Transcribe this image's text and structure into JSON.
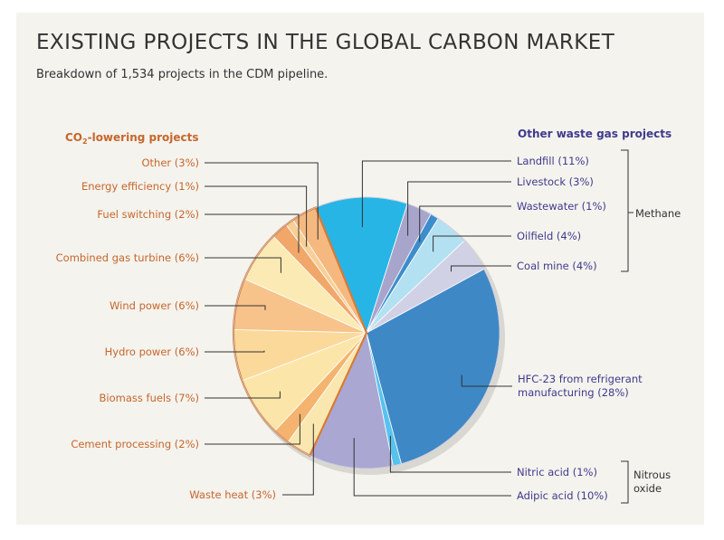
{
  "chart_data": {
    "type": "pie",
    "title": "EXISTING PROJECTS IN THE GLOBAL CARBON MARKET",
    "subtitle": "Breakdown of 1,534 projects in the CDM pipeline.",
    "groups": {
      "left_header_prefix": "CO",
      "left_header_sub": "2",
      "left_header_suffix": "-lowering projects",
      "right_header": "Other waste gas projects",
      "methane": "Methane",
      "nitrous_line1": "Nitrous",
      "nitrous_line2": "oxide"
    },
    "slices": [
      {
        "label": "Landfill (11%)",
        "value": 11,
        "group": "waste",
        "color": "#27b5e6"
      },
      {
        "label": "Livestock (3%)",
        "value": 3,
        "group": "waste",
        "color": "#a7a5cc"
      },
      {
        "label": "Wastewater (1%)",
        "value": 1,
        "group": "waste",
        "color": "#3d8dcc"
      },
      {
        "label": "Oilfield (4%)",
        "value": 4,
        "group": "waste",
        "color": "#b4e1f1"
      },
      {
        "label": "Coal mine (4%)",
        "value": 4,
        "group": "waste",
        "color": "#d1d1e6"
      },
      {
        "label": "HFC-23 from refrigerant manufacturing (28%)",
        "label_lines": [
          "HFC-23 from refrigerant",
          "manufacturing (28%)"
        ],
        "value": 28,
        "group": "waste",
        "color": "#3e88c6"
      },
      {
        "label": "Nitric acid (1%)",
        "value": 1,
        "group": "waste",
        "color": "#57c2ee"
      },
      {
        "label": "Adipic acid (10%)",
        "value": 10,
        "group": "waste",
        "color": "#aaa8d2"
      },
      {
        "label": "Waste heat (3%)",
        "value": 3,
        "group": "co2",
        "color": "#fae7b0"
      },
      {
        "label": "Cement processing (2%)",
        "value": 2,
        "group": "co2",
        "color": "#f4b36e"
      },
      {
        "label": "Biomass fuels (7%)",
        "value": 7,
        "group": "co2",
        "color": "#fbe5a8"
      },
      {
        "label": "Hydro power (6%)",
        "value": 6,
        "group": "co2",
        "color": "#fad99b"
      },
      {
        "label": "Wind power (6%)",
        "value": 6,
        "group": "co2",
        "color": "#f7c38a"
      },
      {
        "label": "Combined gas turbine (6%)",
        "value": 6,
        "group": "co2",
        "color": "#fbeab4"
      },
      {
        "label": "Fuel switching (2%)",
        "value": 2,
        "group": "co2",
        "color": "#f1a769"
      },
      {
        "label": "Energy efficiency (1%)",
        "value": 1,
        "group": "co2",
        "color": "#f8cf96"
      },
      {
        "label": "Other (3%)",
        "value": 3,
        "group": "co2",
        "color": "#f5b980"
      }
    ]
  }
}
